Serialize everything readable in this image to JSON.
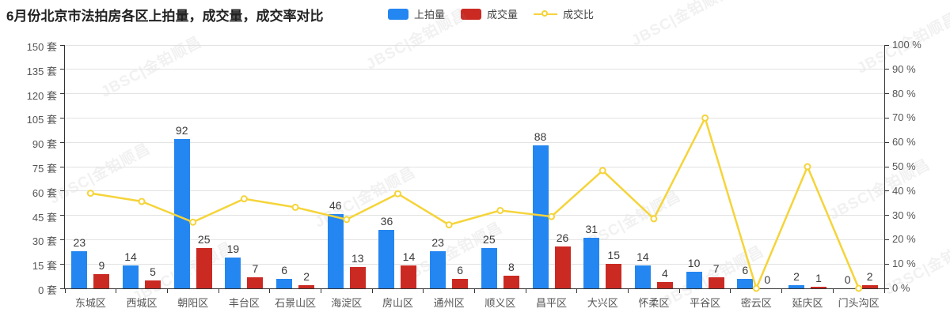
{
  "header": {
    "title": "6月份北京市法拍房各区上拍量，成交量，成交率对比",
    "legend": [
      {
        "label": "上拍量",
        "type": "bar",
        "color": "#2486f0"
      },
      {
        "label": "成交量",
        "type": "bar",
        "color": "#cb2a23"
      },
      {
        "label": "成交比",
        "type": "line",
        "color": "#f5d43a"
      }
    ]
  },
  "watermark": {
    "text": "JBSC|金铂顺昌"
  },
  "chart_data": {
    "type": "bar",
    "title": "6月份北京市法拍房各区上拍量，成交量，成交率对比",
    "categories": [
      "东城区",
      "西城区",
      "朝阳区",
      "丰台区",
      "石景山区",
      "海淀区",
      "房山区",
      "通州区",
      "顺义区",
      "昌平区",
      "大兴区",
      "怀柔区",
      "平谷区",
      "密云区",
      "延庆区",
      "门头沟区"
    ],
    "series": [
      {
        "name": "上拍量",
        "type": "bar",
        "axis": "left",
        "color": "#2486f0",
        "values": [
          23,
          14,
          92,
          19,
          6,
          46,
          36,
          23,
          25,
          88,
          31,
          14,
          10,
          6,
          2,
          0
        ]
      },
      {
        "name": "成交量",
        "type": "bar",
        "axis": "left",
        "color": "#cb2a23",
        "values": [
          9,
          5,
          25,
          7,
          2,
          13,
          14,
          6,
          8,
          26,
          15,
          4,
          7,
          0,
          1,
          2
        ]
      },
      {
        "name": "成交比",
        "type": "line",
        "axis": "right",
        "color": "#f5d43a",
        "values": [
          39.1,
          35.7,
          27.2,
          36.8,
          33.3,
          28.3,
          38.9,
          26.1,
          32.0,
          29.5,
          48.4,
          28.6,
          70.0,
          0,
          50.0,
          0
        ]
      }
    ],
    "left_axis": {
      "unit": "套",
      "min": 0,
      "max": 150,
      "step": 15,
      "tick_labels": [
        "0 套",
        "15 套",
        "30 套",
        "45 套",
        "60 套",
        "75 套",
        "90 套",
        "105 套",
        "120 套",
        "135 套",
        "150 套"
      ]
    },
    "right_axis": {
      "unit": "%",
      "min": 0,
      "max": 100,
      "step": 10,
      "tick_labels": [
        "0 %",
        "10 %",
        "20 %",
        "30 %",
        "40 %",
        "50 %",
        "60 %",
        "70 %",
        "80 %",
        "90 %",
        "100 %"
      ]
    },
    "grid": true,
    "legend_position": "top"
  }
}
